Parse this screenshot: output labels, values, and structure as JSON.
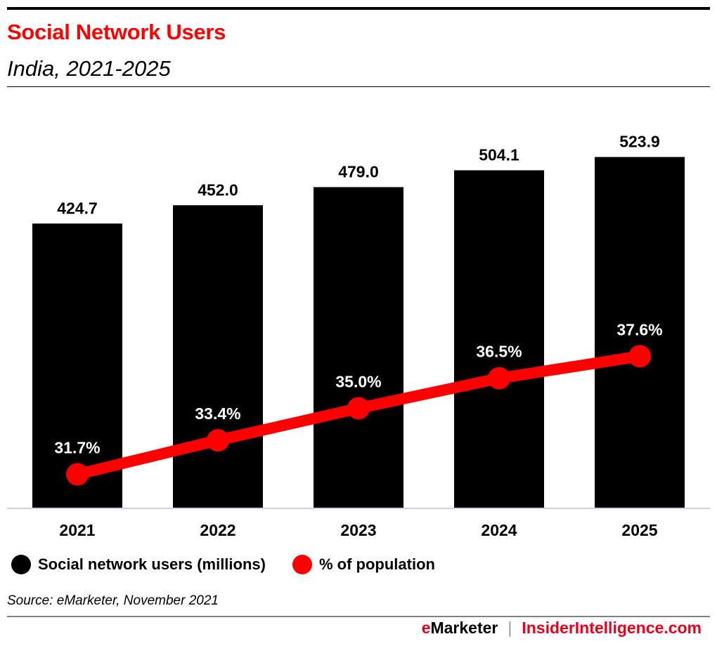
{
  "header": {
    "title": "Social Network Users",
    "subtitle": "India, 2021-2025"
  },
  "chart_data": {
    "type": "bar+line",
    "title": "Social Network Users",
    "subtitle": "India, 2021-2025",
    "categories": [
      "2021",
      "2022",
      "2023",
      "2024",
      "2025"
    ],
    "series": [
      {
        "name": "Social network users (millions)",
        "type": "bar",
        "axis": "primary",
        "color": "#000000",
        "values": [
          424.7,
          452.0,
          479.0,
          504.1,
          523.9
        ],
        "labels": [
          "424.7",
          "452.0",
          "479.0",
          "504.1",
          "523.9"
        ]
      },
      {
        "name": "% of population",
        "type": "line",
        "axis": "secondary",
        "color": "#ff0000",
        "values": [
          31.7,
          33.4,
          35.0,
          36.5,
          37.6
        ],
        "labels": [
          "31.7%",
          "33.4%",
          "35.0%",
          "36.5%",
          "37.6%"
        ]
      }
    ],
    "ylim": [
      0,
      758
    ],
    "y2lim": [
      30,
      55.4
    ],
    "grid": false,
    "legend": "bottom-left",
    "xlabel": "",
    "ylabel": ""
  },
  "legend": {
    "items": [
      {
        "label": "Social network users (millions)",
        "color": "#000000"
      },
      {
        "label": "% of population",
        "color": "#ff0000"
      }
    ]
  },
  "source": "Source: eMarketer, November 2021",
  "footer": {
    "brand_e": "e",
    "brand_rest": "Marketer",
    "separator": "|",
    "site": "InsiderIntelligence.com"
  },
  "colors": {
    "accent": "#ff0000",
    "bar": "#000000",
    "axis": "#c8d4e6"
  }
}
